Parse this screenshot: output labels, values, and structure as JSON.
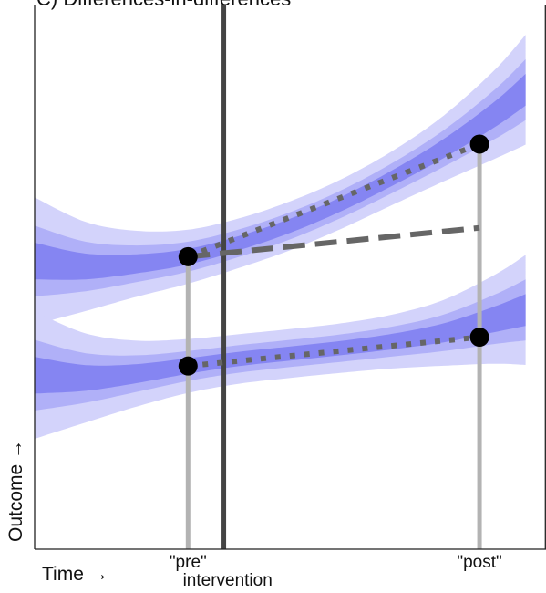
{
  "chart_data": {
    "type": "line",
    "title": "C) Differences-in-differences",
    "xlabel": "Time →",
    "ylabel": "Outcome →",
    "xlim": [
      0,
      1
    ],
    "ylim": [
      0,
      1
    ],
    "x_ticks": [
      {
        "x": 0.3,
        "label": "\"pre\""
      },
      {
        "x": 0.87,
        "label": "\"post\""
      }
    ],
    "intervention": {
      "x": 0.37,
      "label": "intervention"
    },
    "colors": {
      "band_outer": "#d3d3fb",
      "band_middle": "#b0b0f8",
      "band_inner": "#8585f2",
      "observation_line": "#b3b3b3",
      "intervention_line": "#444444",
      "trend_line": "#666666",
      "point": "#000000",
      "axes": "#222222"
    },
    "bands": [
      {
        "group": "upper",
        "x": [
          0.0,
          0.1,
          0.2,
          0.3,
          0.4,
          0.5,
          0.6,
          0.7,
          0.8,
          0.9,
          0.96
        ],
        "center": [
          0.53,
          0.52,
          0.525,
          0.538,
          0.563,
          0.595,
          0.635,
          0.683,
          0.737,
          0.8,
          0.845
        ],
        "half_widths": [
          0.045,
          0.025,
          0.013
        ]
      },
      {
        "group": "lower",
        "x": [
          0.0,
          0.1,
          0.2,
          0.3,
          0.4,
          0.5,
          0.6,
          0.7,
          0.8,
          0.9,
          0.96
        ],
        "center": [
          0.32,
          0.315,
          0.323,
          0.337,
          0.35,
          0.36,
          0.37,
          0.382,
          0.398,
          0.423,
          0.44
        ],
        "half_widths": [
          0.045,
          0.025,
          0.013
        ]
      }
    ],
    "points": [
      {
        "group": "upper",
        "time": "pre",
        "x": 0.3,
        "y": 0.538
      },
      {
        "group": "upper",
        "time": "post",
        "x": 0.87,
        "y": 0.745
      },
      {
        "group": "lower",
        "time": "pre",
        "x": 0.3,
        "y": 0.337
      },
      {
        "group": "lower",
        "time": "post",
        "x": 0.87,
        "y": 0.39
      }
    ],
    "trend_lines": [
      {
        "kind": "observed",
        "style": "dotted",
        "from": [
          0.3,
          0.538
        ],
        "to": [
          0.87,
          0.745
        ]
      },
      {
        "kind": "counterfactual",
        "style": "dashed",
        "from": [
          0.3,
          0.538
        ],
        "to": [
          0.87,
          0.591
        ]
      },
      {
        "kind": "observed",
        "style": "dotted",
        "from": [
          0.3,
          0.337
        ],
        "to": [
          0.87,
          0.39
        ]
      }
    ],
    "grid": false,
    "legend": "none"
  }
}
